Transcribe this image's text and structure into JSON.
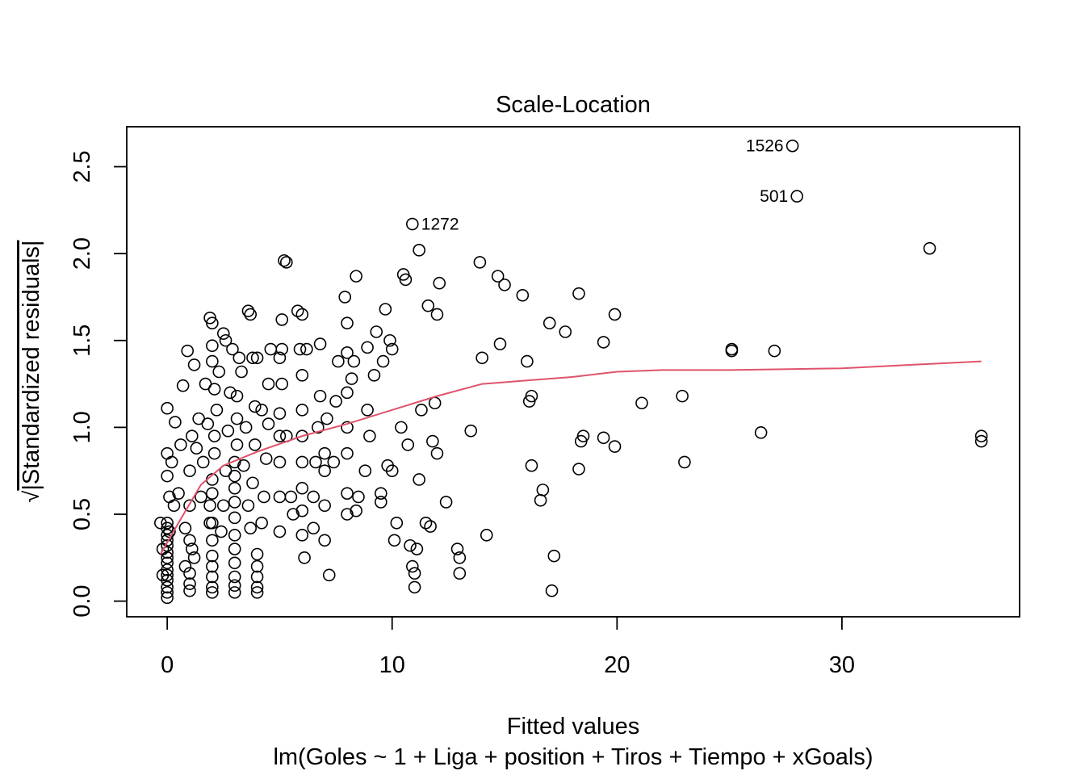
{
  "chart_data": {
    "type": "scatter",
    "title": "Scale-Location",
    "xlabel": "Fitted values",
    "subtitle": "lm(Goles ~ 1 + Liga + position + Tiros + Tiempo + xGoals)",
    "ylabel_radical": "√",
    "ylabel": "|Standardized residuals|",
    "xlim": [
      -1.8,
      37.9
    ],
    "ylim": [
      -0.09,
      2.73
    ],
    "xticks": [
      0,
      10,
      20,
      30
    ],
    "yticks": [
      0.0,
      0.5,
      1.0,
      1.5,
      2.0,
      2.5
    ],
    "xtick_labels": [
      "0",
      "10",
      "20",
      "30"
    ],
    "ytick_labels": [
      "0.0",
      "0.5",
      "1.0",
      "1.5",
      "2.0",
      "2.5"
    ],
    "grid": false,
    "point_style": "open-circle",
    "point_color": "#000000",
    "smooth_color": "#DF536B",
    "labeled_points": [
      {
        "label": "1526",
        "x": 27.8,
        "y": 2.62
      },
      {
        "label": "501",
        "x": 28.0,
        "y": 2.33
      },
      {
        "label": "1272",
        "x": 10.9,
        "y": 2.17
      }
    ],
    "points": [
      [
        0,
        0.02
      ],
      [
        0,
        0.05
      ],
      [
        0,
        0.08
      ],
      [
        0,
        0.12
      ],
      [
        0,
        0.15
      ],
      [
        0,
        0.18
      ],
      [
        0,
        0.22
      ],
      [
        0,
        0.25
      ],
      [
        0,
        0.28
      ],
      [
        0,
        0.32
      ],
      [
        0,
        0.35
      ],
      [
        0,
        0.38
      ],
      [
        0,
        0.42
      ],
      [
        0,
        0.45
      ],
      [
        -0.3,
        0.45
      ],
      [
        -0.2,
        0.3
      ],
      [
        -0.2,
        0.15
      ],
      [
        0.1,
        0.4
      ],
      [
        0.1,
        0.6
      ],
      [
        0,
        0.72
      ],
      [
        0,
        0.85
      ],
      [
        0,
        1.11
      ],
      [
        0.3,
        0.55
      ],
      [
        0.2,
        0.8
      ],
      [
        0.35,
        1.03
      ],
      [
        0.5,
        0.62
      ],
      [
        0.6,
        0.9
      ],
      [
        0.7,
        1.24
      ],
      [
        0.8,
        0.42
      ],
      [
        0.8,
        0.2
      ],
      [
        0.9,
        1.44
      ],
      [
        1,
        0.35
      ],
      [
        1,
        0.55
      ],
      [
        1,
        0.75
      ],
      [
        1.1,
        0.95
      ],
      [
        1.2,
        1.36
      ],
      [
        1.4,
        1.05
      ],
      [
        1.3,
        0.88
      ],
      [
        1.5,
        0.6
      ],
      [
        1.6,
        0.8
      ],
      [
        1.7,
        1.25
      ],
      [
        1.8,
        1.02
      ],
      [
        1.9,
        0.45
      ],
      [
        1,
        0.1
      ],
      [
        1,
        0.06
      ],
      [
        1,
        0.16
      ],
      [
        1.2,
        0.25
      ],
      [
        1.1,
        0.3
      ],
      [
        2,
        0.05
      ],
      [
        2,
        0.08
      ],
      [
        2,
        0.14
      ],
      [
        2,
        0.2
      ],
      [
        2,
        0.26
      ],
      [
        2,
        0.35
      ],
      [
        2,
        0.45
      ],
      [
        1.9,
        0.55
      ],
      [
        2,
        0.62
      ],
      [
        2,
        0.7
      ],
      [
        2.1,
        0.85
      ],
      [
        2.1,
        0.95
      ],
      [
        2.2,
        1.1
      ],
      [
        2.1,
        1.22
      ],
      [
        2,
        1.38
      ],
      [
        2,
        1.47
      ],
      [
        1.9,
        1.63
      ],
      [
        2,
        1.6
      ],
      [
        2.3,
        1.32
      ],
      [
        2.4,
        0.4
      ],
      [
        2.5,
        0.55
      ],
      [
        2.6,
        0.75
      ],
      [
        2.7,
        0.98
      ],
      [
        2.8,
        1.2
      ],
      [
        2.9,
        1.45
      ],
      [
        2.5,
        1.54
      ],
      [
        2.6,
        1.5
      ],
      [
        3,
        0.05
      ],
      [
        3,
        0.09
      ],
      [
        3,
        0.14
      ],
      [
        3,
        0.22
      ],
      [
        3,
        0.3
      ],
      [
        3,
        0.38
      ],
      [
        3,
        0.48
      ],
      [
        3,
        0.57
      ],
      [
        3,
        0.65
      ],
      [
        3,
        0.72
      ],
      [
        3,
        0.8
      ],
      [
        3.1,
        0.9
      ],
      [
        3.1,
        1.05
      ],
      [
        3.1,
        1.18
      ],
      [
        3.2,
        1.4
      ],
      [
        3.3,
        1.32
      ],
      [
        3.5,
        1.0
      ],
      [
        3.4,
        0.78
      ],
      [
        3.6,
        0.55
      ],
      [
        3.7,
        0.42
      ],
      [
        3.8,
        0.68
      ],
      [
        3.9,
        0.9
      ],
      [
        3.9,
        1.12
      ],
      [
        3.8,
        1.4
      ],
      [
        3.6,
        1.67
      ],
      [
        3.7,
        1.65
      ],
      [
        4,
        1.4
      ],
      [
        4,
        0.05
      ],
      [
        4,
        0.08
      ],
      [
        4,
        0.14
      ],
      [
        4,
        0.2
      ],
      [
        4,
        0.27
      ],
      [
        4.2,
        0.45
      ],
      [
        4.3,
        0.6
      ],
      [
        4.4,
        0.82
      ],
      [
        4.5,
        1.02
      ],
      [
        4.5,
        1.25
      ],
      [
        4.6,
        1.45
      ],
      [
        4.2,
        1.1
      ],
      [
        5,
        0.4
      ],
      [
        5,
        0.6
      ],
      [
        5,
        0.8
      ],
      [
        5,
        0.95
      ],
      [
        5,
        1.08
      ],
      [
        5.1,
        1.25
      ],
      [
        5,
        1.4
      ],
      [
        5.1,
        1.62
      ],
      [
        5.2,
        1.96
      ],
      [
        5.3,
        1.95
      ],
      [
        5.1,
        1.45
      ],
      [
        5.3,
        0.95
      ],
      [
        5.5,
        0.6
      ],
      [
        5.6,
        0.5
      ],
      [
        6,
        0.38
      ],
      [
        6,
        0.52
      ],
      [
        6,
        0.65
      ],
      [
        6,
        0.8
      ],
      [
        6,
        0.95
      ],
      [
        6,
        1.1
      ],
      [
        6,
        1.3
      ],
      [
        5.9,
        1.45
      ],
      [
        5.8,
        1.67
      ],
      [
        6,
        1.65
      ],
      [
        6.2,
        1.45
      ],
      [
        6.1,
        0.25
      ],
      [
        6.5,
        0.42
      ],
      [
        6.5,
        0.6
      ],
      [
        6.6,
        0.8
      ],
      [
        6.7,
        1.0
      ],
      [
        6.8,
        1.18
      ],
      [
        6.8,
        1.48
      ],
      [
        7,
        0.35
      ],
      [
        7,
        0.55
      ],
      [
        7,
        0.75
      ],
      [
        7,
        0.85
      ],
      [
        7.1,
        1.05
      ],
      [
        7.2,
        0.15
      ],
      [
        7.4,
        0.8
      ],
      [
        7.5,
        1.15
      ],
      [
        7.6,
        1.38
      ],
      [
        8,
        0.5
      ],
      [
        8,
        0.62
      ],
      [
        8,
        0.85
      ],
      [
        8,
        1.0
      ],
      [
        8,
        1.2
      ],
      [
        8,
        1.43
      ],
      [
        8,
        1.6
      ],
      [
        7.9,
        1.75
      ],
      [
        8.2,
        1.28
      ],
      [
        8.3,
        1.38
      ],
      [
        8.4,
        1.87
      ],
      [
        8.4,
        0.52
      ],
      [
        8.5,
        0.6
      ],
      [
        8.8,
        0.75
      ],
      [
        8.9,
        1.1
      ],
      [
        8.9,
        1.46
      ],
      [
        9,
        0.95
      ],
      [
        9.2,
        1.3
      ],
      [
        9.3,
        1.55
      ],
      [
        9.5,
        0.62
      ],
      [
        9.5,
        0.57
      ],
      [
        9.6,
        1.38
      ],
      [
        9.7,
        1.68
      ],
      [
        9.8,
        0.78
      ],
      [
        9.9,
        1.5
      ],
      [
        10,
        1.45
      ],
      [
        10,
        0.75
      ],
      [
        10.1,
        0.35
      ],
      [
        10.2,
        0.45
      ],
      [
        10.4,
        1.0
      ],
      [
        10.5,
        1.88
      ],
      [
        10.6,
        1.85
      ],
      [
        10.7,
        0.9
      ],
      [
        10.8,
        0.32
      ],
      [
        10.9,
        0.2
      ],
      [
        11,
        0.08
      ],
      [
        11,
        0.16
      ],
      [
        11.1,
        0.3
      ],
      [
        11.2,
        2.02
      ],
      [
        11.2,
        0.7
      ],
      [
        11.3,
        1.1
      ],
      [
        11.5,
        0.45
      ],
      [
        11.6,
        1.7
      ],
      [
        11.7,
        0.43
      ],
      [
        11.8,
        0.92
      ],
      [
        11.9,
        1.14
      ],
      [
        12,
        1.65
      ],
      [
        12.1,
        1.83
      ],
      [
        12,
        0.85
      ],
      [
        12.4,
        0.57
      ],
      [
        12.9,
        0.3
      ],
      [
        13,
        0.25
      ],
      [
        13,
        0.16
      ],
      [
        13.5,
        0.98
      ],
      [
        13.9,
        1.95
      ],
      [
        14,
        1.4
      ],
      [
        14.2,
        0.38
      ],
      [
        14.8,
        1.48
      ],
      [
        14.7,
        1.87
      ],
      [
        15,
        1.82
      ],
      [
        15.8,
        1.76
      ],
      [
        16,
        1.38
      ],
      [
        16.1,
        1.15
      ],
      [
        16.2,
        0.78
      ],
      [
        16.2,
        1.18
      ],
      [
        16.6,
        0.58
      ],
      [
        16.7,
        0.64
      ],
      [
        17,
        1.6
      ],
      [
        17.1,
        0.06
      ],
      [
        17.2,
        0.26
      ],
      [
        17.7,
        1.55
      ],
      [
        18.3,
        1.77
      ],
      [
        18.3,
        0.76
      ],
      [
        18.4,
        0.92
      ],
      [
        18.5,
        0.95
      ],
      [
        19.4,
        1.49
      ],
      [
        19.4,
        0.94
      ],
      [
        19.9,
        0.89
      ],
      [
        19.9,
        1.65
      ],
      [
        21.1,
        1.14
      ],
      [
        22.9,
        1.18
      ],
      [
        23,
        0.8
      ],
      [
        25.1,
        1.45
      ],
      [
        25.1,
        1.44
      ],
      [
        26.4,
        0.97
      ],
      [
        27,
        1.44
      ],
      [
        33.9,
        2.03
      ],
      [
        36.2,
        0.92
      ],
      [
        36.2,
        0.95
      ]
    ],
    "smooth": [
      [
        -0.3,
        0.27
      ],
      [
        0.5,
        0.45
      ],
      [
        1.5,
        0.67
      ],
      [
        2.5,
        0.78
      ],
      [
        4,
        0.86
      ],
      [
        6,
        0.95
      ],
      [
        8,
        1.02
      ],
      [
        10,
        1.1
      ],
      [
        12,
        1.18
      ],
      [
        14,
        1.25
      ],
      [
        16,
        1.27
      ],
      [
        18,
        1.29
      ],
      [
        20,
        1.32
      ],
      [
        22,
        1.33
      ],
      [
        25,
        1.33
      ],
      [
        30,
        1.34
      ],
      [
        36.2,
        1.38
      ]
    ]
  }
}
